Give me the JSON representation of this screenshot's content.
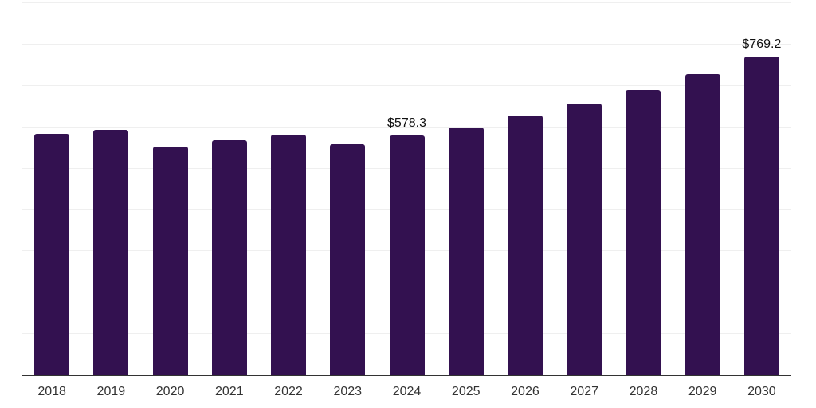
{
  "chart_data": {
    "type": "bar",
    "title": "",
    "xlabel": "",
    "ylabel": "",
    "categories": [
      "2018",
      "2019",
      "2020",
      "2021",
      "2022",
      "2023",
      "2024",
      "2025",
      "2026",
      "2027",
      "2028",
      "2029",
      "2030"
    ],
    "values": [
      582,
      592,
      551,
      567,
      581,
      557,
      578.3,
      598,
      626,
      655,
      688,
      726,
      769.2
    ],
    "data_labels": [
      {
        "category": "2024",
        "text": "$578.3"
      },
      {
        "category": "2030",
        "text": "$769.2"
      }
    ],
    "ylim": [
      0,
      900
    ],
    "gridline_step": 100,
    "grid": "horizontal-only",
    "legend": "none",
    "colors": {
      "bar": "#331150",
      "gridline": "#efefef",
      "axis_line": "#333333",
      "tick_label": "#333333",
      "data_label": "#111111",
      "background": "#ffffff"
    }
  }
}
